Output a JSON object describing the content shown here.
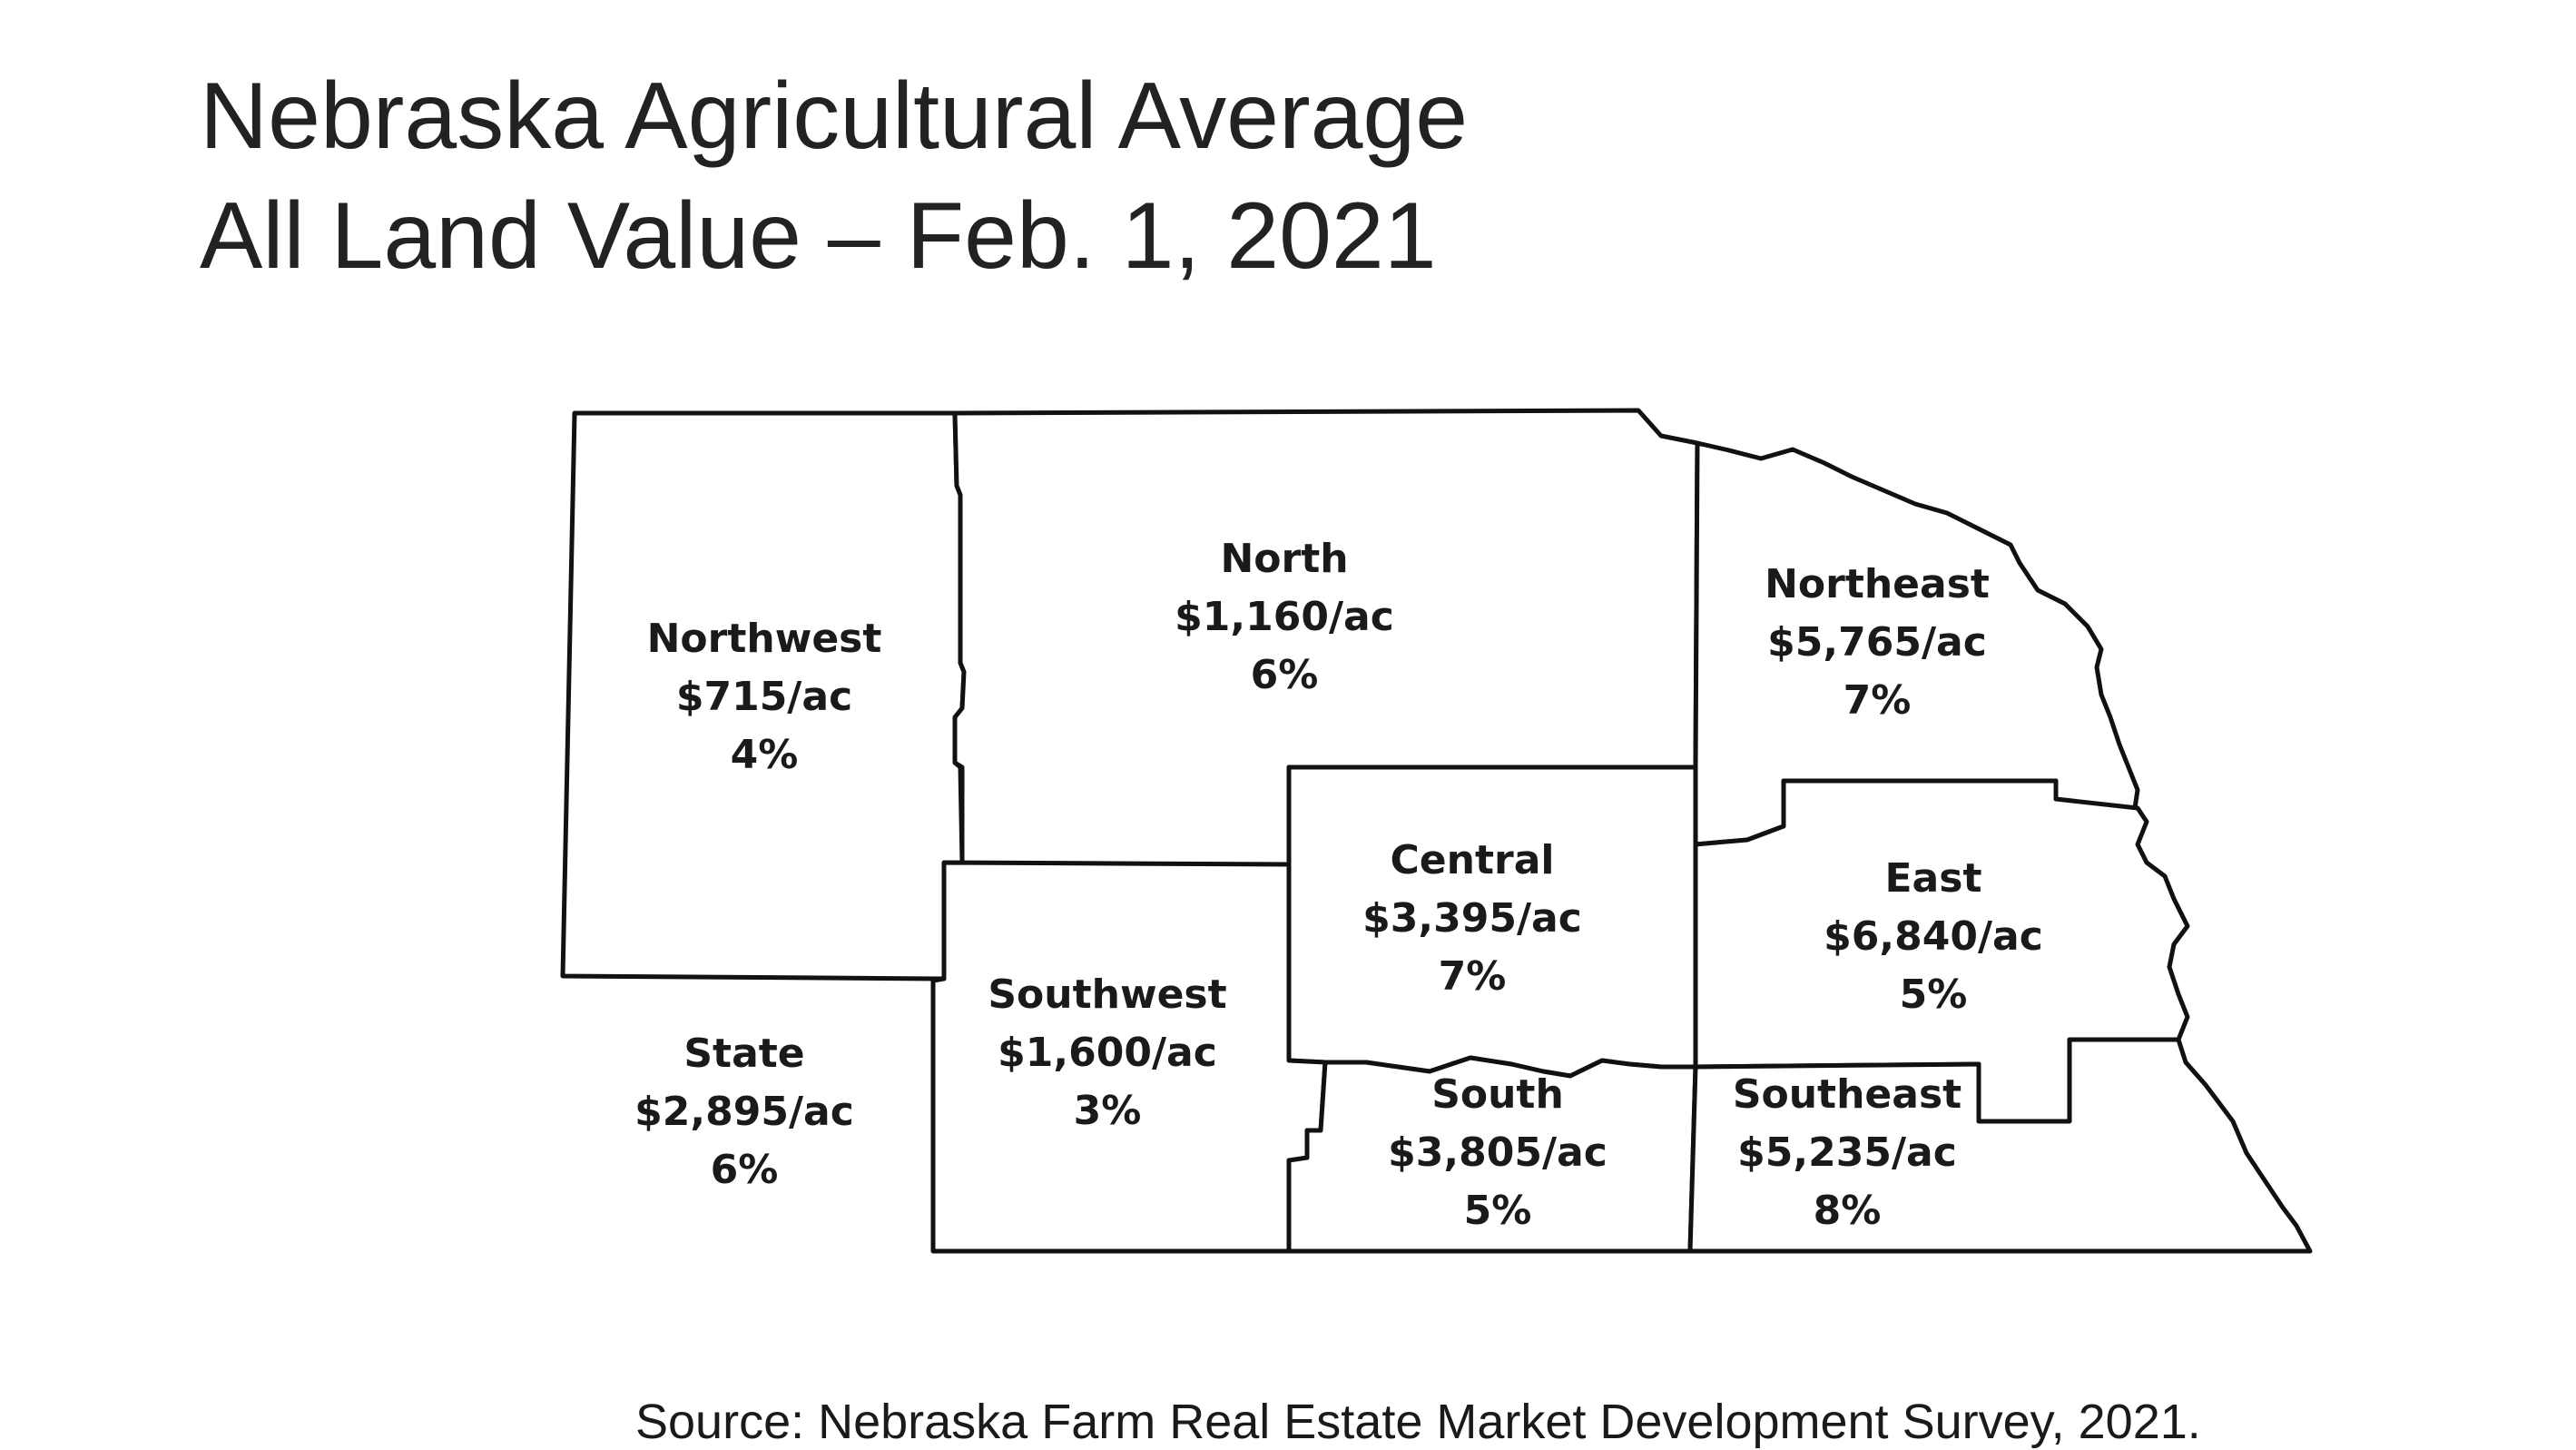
{
  "title": {
    "line1": "Nebraska Agricultural Average",
    "line2": "All Land Value – Feb. 1, 2021"
  },
  "regions": [
    {
      "id": "northwest",
      "name": "Northwest",
      "value": "$715/ac",
      "change": "4%"
    },
    {
      "id": "north",
      "name": "North",
      "value": "$1,160/ac",
      "change": "6%"
    },
    {
      "id": "northeast",
      "name": "Northeast",
      "value": "$5,765/ac",
      "change": "7%"
    },
    {
      "id": "central",
      "name": "Central",
      "value": "$3,395/ac",
      "change": "7%"
    },
    {
      "id": "east",
      "name": "East",
      "value": "$6,840/ac",
      "change": "5%"
    },
    {
      "id": "southwest",
      "name": "Southwest",
      "value": "$1,600/ac",
      "change": "3%"
    },
    {
      "id": "south",
      "name": "South",
      "value": "$3,805/ac",
      "change": "5%"
    },
    {
      "id": "southeast",
      "name": "Southeast",
      "value": "$5,235/ac",
      "change": "8%"
    }
  ],
  "state": {
    "name": "State",
    "value": "$2,895/ac",
    "change": "6%"
  },
  "source": "Source: Nebraska Farm Real Estate Market Development Survey, 2021.",
  "colors": {
    "outline": "#111111",
    "fill": "#ffffff",
    "text": "#1a1a1a"
  }
}
